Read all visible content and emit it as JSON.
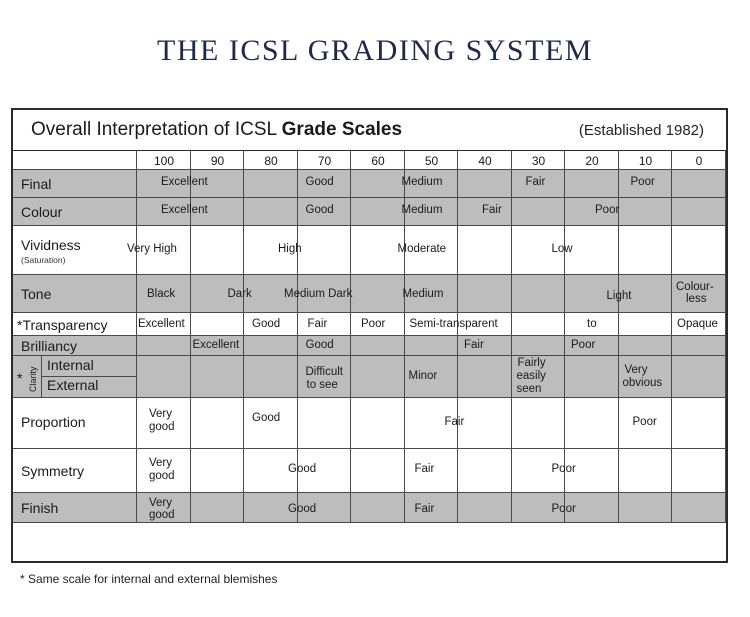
{
  "page_title": "THE ICSL GRADING SYSTEM",
  "table": {
    "heading_main_regular": "Overall Interpretation of ICSL ",
    "heading_main_bold": "Grade Scales",
    "established": "(Established 1982)",
    "scale": [
      "100",
      "90",
      "80",
      "70",
      "60",
      "50",
      "40",
      "30",
      "20",
      "10",
      "0"
    ],
    "rows": [
      {
        "label": "Final",
        "values": [
          "Excellent",
          "Good",
          "Medium",
          "Fair",
          "Poor"
        ]
      },
      {
        "label": "Colour",
        "values": [
          "Excellent",
          "Good",
          "Medium",
          "Fair",
          "Poor"
        ]
      },
      {
        "label": "Vividness",
        "sublabel": "(Saturation)",
        "values": [
          "Very High",
          "High",
          "Moderate",
          "Low"
        ]
      },
      {
        "label": "Tone",
        "values": [
          "Black",
          "Dark",
          "Medium Dark",
          "Medium",
          "Light",
          "Colour-",
          "less"
        ]
      },
      {
        "label": "*Transparency",
        "values": [
          "Excellent",
          "Good",
          "Fair",
          "Poor",
          "Semi-transparent",
          "to",
          "Opaque"
        ]
      },
      {
        "label": "Brilliancy",
        "values": [
          "Excellent",
          "Good",
          "Fair",
          "Poor"
        ]
      },
      {
        "label_internal": "Internal",
        "label_external": "External",
        "clarity": "Clarity",
        "star": "*",
        "values": [
          "Difficult",
          "to see",
          "Minor",
          "Fairly",
          "easily",
          "seen",
          "Very",
          "obvious"
        ]
      },
      {
        "label": "Proportion",
        "values": [
          "Very",
          "good",
          "Good",
          "Fair",
          "Poor"
        ]
      },
      {
        "label": "Symmetry",
        "values": [
          "Very",
          "good",
          "Good",
          "Fair",
          "Poor"
        ]
      },
      {
        "label": "Finish",
        "values": [
          "Very",
          "good",
          "Good",
          "Fair",
          "Poor"
        ]
      }
    ]
  },
  "footnote": "* Same scale for internal and external blemishes"
}
